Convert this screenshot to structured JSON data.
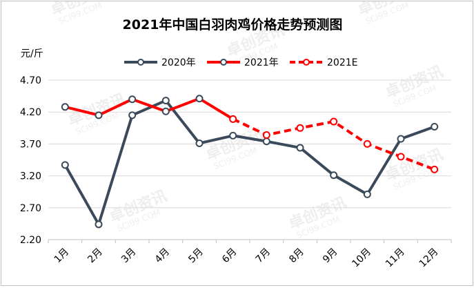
{
  "chart_data": {
    "type": "line",
    "title": "2021年中国白羽肉鸡价格走势预测图",
    "ylabel": "元/斤",
    "categories": [
      "1月",
      "2月",
      "3月",
      "4月",
      "5月",
      "6月",
      "7月",
      "8月",
      "9月",
      "10月",
      "11月",
      "12月"
    ],
    "ylim": [
      2.2,
      4.7
    ],
    "yticks": [
      "2.20",
      "2.70",
      "3.20",
      "3.70",
      "4.20",
      "4.70"
    ],
    "legend_position": "top",
    "series": [
      {
        "name": "2020年",
        "color": "#3b4a5a",
        "dash": false,
        "values": [
          3.37,
          2.44,
          4.15,
          4.38,
          3.71,
          3.83,
          3.74,
          3.64,
          3.21,
          2.91,
          3.78,
          3.97
        ]
      },
      {
        "name": "2021年",
        "color": "#ff0000",
        "dash": false,
        "values": [
          4.28,
          4.15,
          4.4,
          4.21,
          4.41,
          4.09,
          null,
          null,
          null,
          null,
          null,
          null
        ]
      },
      {
        "name": "2021E",
        "color": "#ff0000",
        "dash": true,
        "values": [
          null,
          null,
          null,
          null,
          null,
          4.09,
          3.84,
          3.95,
          4.05,
          3.7,
          3.5,
          3.3
        ]
      }
    ]
  },
  "watermark": {
    "brand": "卓创资讯",
    "site": "SCI99.COM"
  }
}
